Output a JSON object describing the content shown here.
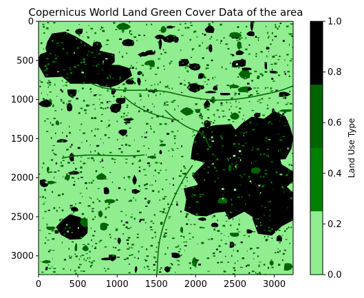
{
  "chart_data": {
    "type": "heatmap",
    "title": "Copernicus World Land Green Cover Data of the area",
    "xlabel": "",
    "ylabel": "",
    "xlim": [
      0,
      3240
    ],
    "ylim": [
      3240,
      0
    ],
    "x_ticks": [
      "0",
      "500",
      "1000",
      "1500",
      "2000",
      "2500",
      "3000"
    ],
    "x_tick_values": [
      0,
      500,
      1000,
      1500,
      2000,
      2500,
      3000
    ],
    "y_ticks": [
      "0",
      "500",
      "1000",
      "1500",
      "2000",
      "2500",
      "3000"
    ],
    "y_tick_values": [
      0,
      500,
      1000,
      1500,
      2000,
      2500,
      3000
    ],
    "colorbar": {
      "label": "Land Use Type",
      "range": [
        0.0,
        1.0
      ],
      "ticks": [
        "0.0",
        "0.2",
        "0.4",
        "0.6",
        "0.8",
        "1.0"
      ],
      "tick_values": [
        0.0,
        0.2,
        0.4,
        0.6,
        0.8,
        1.0
      ],
      "bands": [
        {
          "from": 0.0,
          "to": 0.25,
          "color": "#90ee90"
        },
        {
          "from": 0.25,
          "to": 0.5,
          "color": "#008000"
        },
        {
          "from": 0.5,
          "to": 0.75,
          "color": "#006400"
        },
        {
          "from": 0.75,
          "to": 1.0,
          "color": "#000000"
        }
      ]
    },
    "colors": {
      "light_green": "#90ee90",
      "green": "#008000",
      "dark_green": "#006400",
      "black": "#000000"
    }
  }
}
